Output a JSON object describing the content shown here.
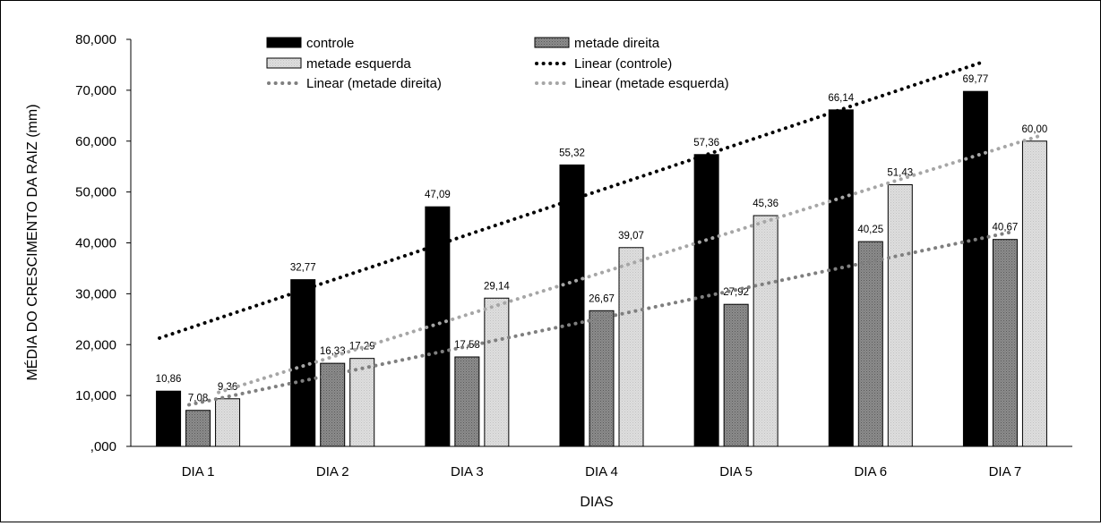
{
  "chart_data": {
    "type": "bar",
    "xlabel": "DIAS",
    "ylabel": "MÉDIA DO CRESCIMENTO DA RAIZ (mm)",
    "ylim": [
      0,
      80
    ],
    "yticks": [
      ",000",
      "10,000",
      "20,000",
      "30,000",
      "40,000",
      "50,000",
      "60,000",
      "70,000",
      "80,000"
    ],
    "categories": [
      "DIA 1",
      "DIA 2",
      "DIA 3",
      "DIA 4",
      "DIA 5",
      "DIA 6",
      "DIA 7"
    ],
    "series": [
      {
        "name": "controle",
        "values": [
          10.86,
          32.77,
          47.09,
          55.32,
          57.36,
          66.14,
          69.77
        ],
        "labels": [
          "10,86",
          "32,77",
          "47,09",
          "55,32",
          "57,36",
          "66,14",
          "69,77"
        ],
        "fill": "#000000",
        "pattern": "solid"
      },
      {
        "name": "metade direita",
        "values": [
          7.08,
          16.33,
          17.58,
          26.67,
          27.92,
          40.25,
          40.67
        ],
        "labels": [
          "7,08",
          "16,33",
          "17,58",
          "26,67",
          "27,92",
          "40,25",
          "40,67"
        ],
        "fill": "#7f7f7f",
        "pattern": "dots-dark"
      },
      {
        "name": "metade esquerda",
        "values": [
          9.36,
          17.29,
          29.14,
          39.07,
          45.36,
          51.43,
          60.0
        ],
        "labels": [
          "9,36",
          "17,29",
          "29,14",
          "39,07",
          "45,36",
          "51,43",
          "60,00"
        ],
        "fill": "#d9d9d9",
        "pattern": "dots-light"
      }
    ],
    "trendlines": [
      {
        "name": "Linear (controle)",
        "series": "controle",
        "color": "#000000"
      },
      {
        "name": "Linear (metade direita)",
        "series": "metade direita",
        "color": "#7f7f7f"
      },
      {
        "name": "Linear (metade esquerda)",
        "series": "metade esquerda",
        "color": "#a6a6a6"
      }
    ],
    "legend_position": "top",
    "grid": false
  }
}
